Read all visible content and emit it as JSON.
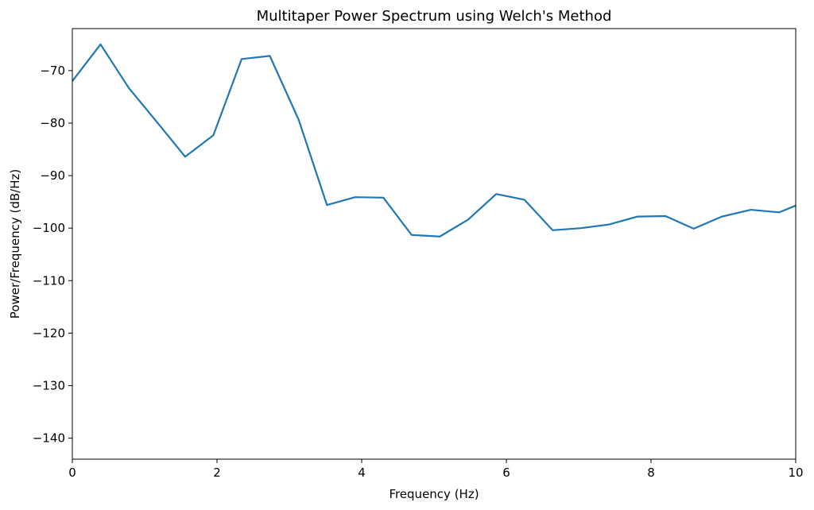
{
  "chart_data": {
    "type": "line",
    "title": "Multitaper Power Spectrum using Welch's Method",
    "xlabel": "Frequency (Hz)",
    "ylabel": "Power/Frequency (dB/Hz)",
    "xlim": [
      0,
      10
    ],
    "ylim": [
      -144,
      -62
    ],
    "x_ticks": [
      0,
      2,
      4,
      6,
      8,
      10
    ],
    "x_tick_labels": [
      "0",
      "2",
      "4",
      "6",
      "8",
      "10"
    ],
    "y_ticks": [
      -70,
      -80,
      -90,
      -100,
      -110,
      -120,
      -130,
      -140
    ],
    "y_tick_labels": [
      "−70",
      "−80",
      "−90",
      "−100",
      "−110",
      "−120",
      "−130",
      "−140"
    ],
    "grid": false,
    "series": [
      {
        "color": "#1f77b4",
        "x": [
          0.0,
          0.39,
          0.78,
          1.17,
          1.56,
          1.95,
          2.34,
          2.73,
          3.13,
          3.52,
          3.91,
          4.3,
          4.69,
          5.08,
          5.47,
          5.86,
          6.25,
          6.64,
          7.03,
          7.42,
          7.81,
          8.2,
          8.59,
          8.98,
          9.38,
          9.77,
          10.0
        ],
        "y": [
          -72.0,
          -65.0,
          -73.3,
          -79.8,
          -86.4,
          -82.3,
          -67.8,
          -67.2,
          -79.4,
          -95.6,
          -94.1,
          -94.2,
          -101.3,
          -101.6,
          -98.4,
          -93.5,
          -94.6,
          -100.4,
          -100.0,
          -99.3,
          -97.8,
          -97.7,
          -100.1,
          -97.8,
          -96.5,
          -97.0,
          -95.7
        ]
      }
    ]
  }
}
